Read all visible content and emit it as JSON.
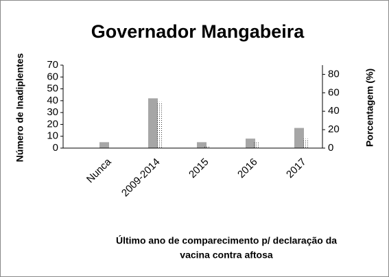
{
  "chart_data": {
    "type": "bar",
    "title": "Governador Mangabeira",
    "x_label": [
      "Último ano de comparecimento p/ declaração  da",
      "vacina contra aftosa"
    ],
    "y_label": "Número de Inadiplentes",
    "y2_label": "Porcentagem (%)",
    "categories": [
      "Nunca",
      "2009-2014",
      "2015",
      "2016",
      "2017"
    ],
    "series": [
      {
        "name": "Número de Inadiplentes",
        "color": "#a6a6a6",
        "values": [
          5,
          42,
          5,
          8,
          17
        ]
      },
      {
        "name": "Porcentagem",
        "color": "#333333",
        "axis": "y2",
        "values": [
          0,
          50,
          3,
          6,
          10
        ]
      }
    ],
    "ylim": [
      0,
      70
    ],
    "yticks": [
      0,
      10,
      20,
      30,
      40,
      50,
      60,
      70
    ],
    "y2lim": [
      0,
      90
    ],
    "y2ticks": [
      0,
      20,
      40,
      60,
      80
    ]
  }
}
